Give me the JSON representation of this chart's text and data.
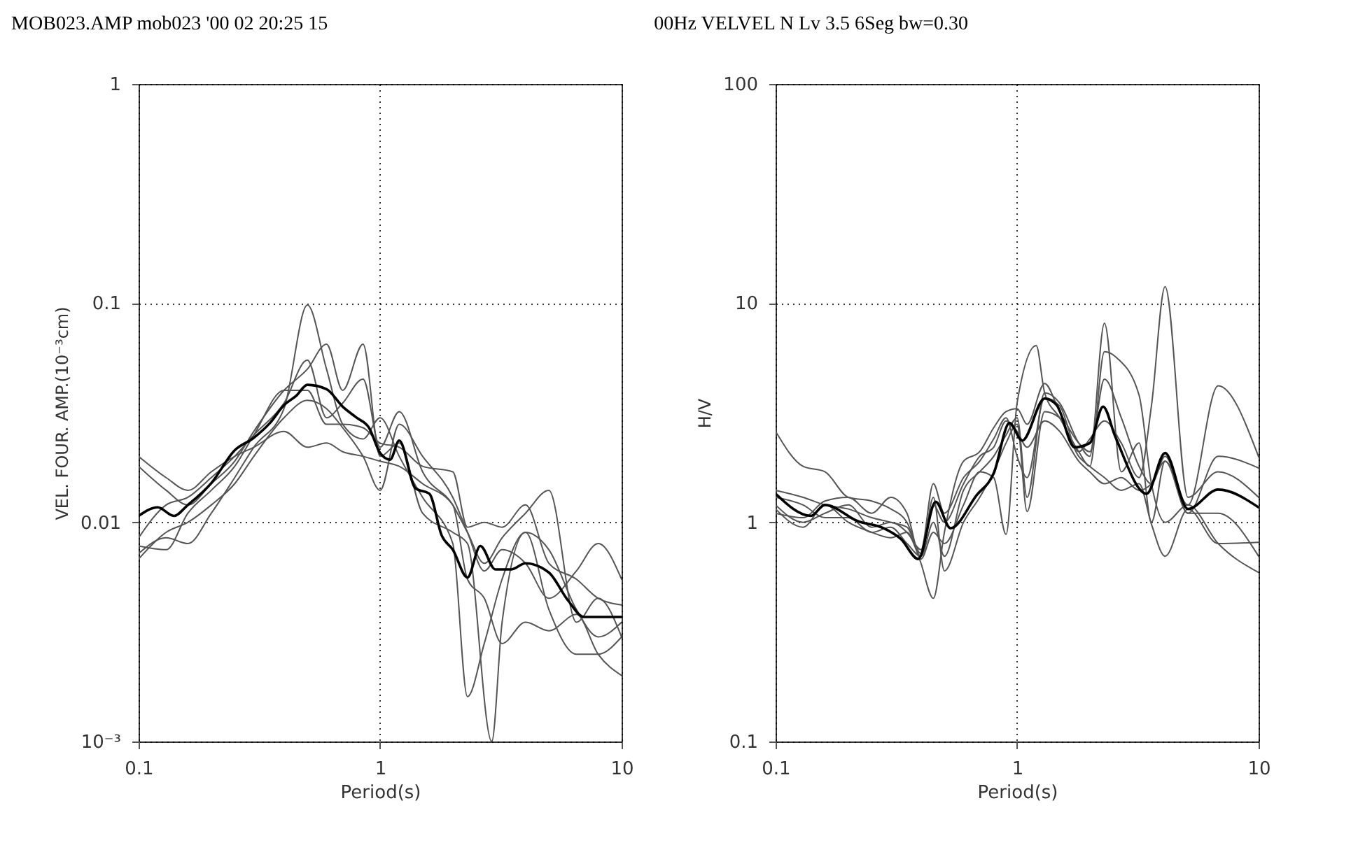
{
  "chart_data": [
    {
      "type": "line",
      "title": "MOB023.AMP mob023 '00 02 20:25 15",
      "xlabel": "Period(s)",
      "ylabel": "VEL. FOUR. AMP.(10⁻³cm)",
      "log": "xy",
      "grid": true,
      "xlim": [
        0.1,
        10
      ],
      "xticks": [
        0.1,
        1,
        10
      ],
      "ylim": [
        0.001,
        1
      ],
      "yticks": [
        {
          "value": 0.001,
          "label": "10⁻³"
        },
        0.01,
        0.1,
        1
      ],
      "series": [
        {
          "color": "#555555",
          "x": [
            0.1,
            0.13,
            0.16,
            0.2,
            0.25,
            0.3,
            0.4,
            0.5,
            0.6,
            0.7,
            0.85,
            1.0,
            1.2,
            1.5,
            2.0,
            2.3,
            2.7,
            3.2,
            4,
            5,
            6.5,
            8,
            10
          ],
          "values": [
            0.0072,
            0.0085,
            0.008,
            0.011,
            0.016,
            0.022,
            0.033,
            0.098,
            0.05,
            0.028,
            0.024,
            0.03,
            0.02,
            0.013,
            0.008,
            0.0016,
            0.0028,
            0.0055,
            0.009,
            0.004,
            0.0025,
            0.0025,
            0.003
          ]
        },
        {
          "color": "#555555",
          "x": [
            0.1,
            0.13,
            0.16,
            0.2,
            0.25,
            0.3,
            0.4,
            0.5,
            0.6,
            0.7,
            0.85,
            1.0,
            1.2,
            1.5,
            2.0,
            2.3,
            2.7,
            3.2,
            4,
            5,
            6.5,
            8,
            10
          ],
          "values": [
            0.02,
            0.016,
            0.014,
            0.017,
            0.02,
            0.022,
            0.026,
            0.022,
            0.023,
            0.021,
            0.02,
            0.019,
            0.018,
            0.015,
            0.012,
            0.0055,
            0.0045,
            0.0028,
            0.0035,
            0.0032,
            0.0038,
            0.0025,
            0.002
          ]
        },
        {
          "color": "#555555",
          "x": [
            0.1,
            0.13,
            0.16,
            0.2,
            0.25,
            0.3,
            0.4,
            0.5,
            0.6,
            0.7,
            0.85,
            1.0,
            1.2,
            1.5,
            2.0,
            2.3,
            2.9,
            3.2,
            4,
            5,
            6.5,
            8,
            10
          ],
          "values": [
            0.018,
            0.014,
            0.012,
            0.015,
            0.019,
            0.026,
            0.04,
            0.05,
            0.065,
            0.04,
            0.065,
            0.02,
            0.023,
            0.011,
            0.009,
            0.008,
            0.001,
            0.0035,
            0.009,
            0.0075,
            0.004,
            0.003,
            0.0035
          ]
        },
        {
          "color": "#555555",
          "x": [
            0.1,
            0.13,
            0.16,
            0.2,
            0.25,
            0.3,
            0.4,
            0.5,
            0.6,
            0.7,
            0.85,
            1.0,
            1.2,
            1.5,
            2.0,
            2.3,
            2.7,
            3.2,
            4,
            5,
            6.5,
            8,
            10
          ],
          "values": [
            0.0085,
            0.012,
            0.013,
            0.016,
            0.02,
            0.025,
            0.035,
            0.055,
            0.03,
            0.035,
            0.045,
            0.022,
            0.032,
            0.017,
            0.012,
            0.009,
            0.0065,
            0.0085,
            0.011,
            0.014,
            0.0035,
            0.0045,
            0.003
          ]
        },
        {
          "color": "#555555",
          "x": [
            0.1,
            0.13,
            0.16,
            0.2,
            0.25,
            0.3,
            0.4,
            0.5,
            0.6,
            0.7,
            0.85,
            1.0,
            1.2,
            1.5,
            2.0,
            2.3,
            2.7,
            3.2,
            4,
            5,
            6.5,
            8,
            10
          ],
          "values": [
            0.0078,
            0.0075,
            0.011,
            0.014,
            0.018,
            0.025,
            0.04,
            0.04,
            0.028,
            0.028,
            0.027,
            0.023,
            0.022,
            0.018,
            0.017,
            0.0095,
            0.01,
            0.0095,
            0.012,
            0.0065,
            0.0055,
            0.0045,
            0.0042
          ]
        },
        {
          "color": "#555555",
          "x": [
            0.1,
            0.13,
            0.16,
            0.2,
            0.25,
            0.3,
            0.4,
            0.5,
            0.6,
            0.7,
            0.85,
            1.0,
            1.2,
            1.5,
            2.0,
            2.3,
            2.7,
            3.2,
            4,
            5,
            6.5,
            8,
            10
          ],
          "values": [
            0.0068,
            0.009,
            0.01,
            0.012,
            0.015,
            0.02,
            0.03,
            0.036,
            0.033,
            0.027,
            0.02,
            0.014,
            0.028,
            0.02,
            0.013,
            0.009,
            0.006,
            0.0075,
            0.0065,
            0.0045,
            0.006,
            0.008,
            0.0055
          ]
        },
        {
          "color": "#000000",
          "x": [
            0.1,
            0.12,
            0.14,
            0.16,
            0.2,
            0.25,
            0.3,
            0.35,
            0.4,
            0.45,
            0.5,
            0.6,
            0.7,
            0.8,
            0.9,
            1.0,
            1.1,
            1.2,
            1.4,
            1.6,
            1.8,
            2.0,
            2.3,
            2.6,
            3.0,
            3.5,
            4.0,
            5,
            6,
            7,
            8,
            10
          ],
          "values": [
            0.0107,
            0.0117,
            0.0107,
            0.012,
            0.0151,
            0.0213,
            0.0243,
            0.0284,
            0.0342,
            0.0378,
            0.0424,
            0.0405,
            0.0337,
            0.03,
            0.027,
            0.0207,
            0.0193,
            0.0236,
            0.0143,
            0.0135,
            0.0087,
            0.0075,
            0.0056,
            0.0078,
            0.0061,
            0.0061,
            0.0065,
            0.0059,
            0.0044,
            0.0037,
            0.0037,
            0.0037
          ]
        }
      ]
    },
    {
      "type": "line",
      "title": "00Hz VELVEL N Lv 3.5 6Seg bw=0.30",
      "xlabel": "Period(s)",
      "ylabel": "H/V",
      "log": "xy",
      "grid": true,
      "xlim": [
        0.1,
        10
      ],
      "xticks": [
        0.1,
        1,
        10
      ],
      "ylim": [
        0.1,
        100
      ],
      "yticks": [
        0.1,
        1,
        10,
        100
      ],
      "series": [
        {
          "color": "#555555",
          "x": [
            0.1,
            0.13,
            0.16,
            0.2,
            0.25,
            0.3,
            0.35,
            0.4,
            0.45,
            0.5,
            0.6,
            0.7,
            0.8,
            0.9,
            1.0,
            1.1,
            1.3,
            1.5,
            1.8,
            2.0,
            2.3,
            2.7,
            3.2,
            3.6,
            4.1,
            5.1,
            6.8,
            10
          ],
          "values": [
            2.6,
            1.8,
            1.7,
            1.3,
            1.25,
            1.15,
            1.0,
            0.65,
            0.45,
            0.9,
            1.9,
            2.1,
            2.7,
            3.2,
            3.3,
            2.8,
            4.3,
            3.2,
            2.3,
            2.1,
            4.5,
            3.0,
            1.8,
            1.5,
            2.0,
            1.1,
            1.1,
            0.7
          ]
        },
        {
          "color": "#555555",
          "x": [
            0.1,
            0.13,
            0.16,
            0.2,
            0.25,
            0.3,
            0.35,
            0.4,
            0.45,
            0.5,
            0.6,
            0.7,
            0.8,
            0.9,
            1.0,
            1.1,
            1.3,
            1.5,
            1.8,
            2.0,
            2.3,
            2.7,
            3.2,
            3.6,
            4.1,
            5.1,
            6.8,
            10
          ],
          "values": [
            1.2,
            1.0,
            1.1,
            1.2,
            0.95,
            1.0,
            0.9,
            0.75,
            1.5,
            1.1,
            1.6,
            1.9,
            2.4,
            3.0,
            2.0,
            1.6,
            3.7,
            3.4,
            2.1,
            2.4,
            2.9,
            2.3,
            1.6,
            3.4,
            11.9,
            1.3,
            1.7,
            1.3
          ]
        },
        {
          "color": "#555555",
          "x": [
            0.1,
            0.13,
            0.16,
            0.2,
            0.25,
            0.3,
            0.35,
            0.4,
            0.45,
            0.5,
            0.6,
            0.7,
            0.8,
            0.9,
            1.0,
            1.1,
            1.3,
            1.5,
            1.8,
            2.0,
            2.3,
            2.7,
            3.2,
            3.6,
            4.1,
            5.1,
            6.8,
            10
          ],
          "values": [
            1.3,
            1.2,
            1.05,
            1.05,
            0.9,
            0.95,
            0.8,
            0.7,
            1.0,
            0.7,
            1.4,
            1.7,
            2.0,
            2.5,
            3.0,
            1.3,
            3.9,
            3.5,
            2.3,
            2.0,
            8.1,
            1.7,
            2.3,
            1.0,
            1.9,
            1.1,
            2.0,
            1.77
          ]
        },
        {
          "color": "#555555",
          "x": [
            0.1,
            0.13,
            0.16,
            0.2,
            0.25,
            0.3,
            0.35,
            0.4,
            0.45,
            0.5,
            0.6,
            0.7,
            0.8,
            0.9,
            1.0,
            1.2,
            1.3,
            1.5,
            1.8,
            2.0,
            2.3,
            2.6,
            3.2,
            3.6,
            4.1,
            5.1,
            6.8,
            10
          ],
          "values": [
            1.1,
            1.05,
            1.25,
            1.3,
            1.1,
            1.3,
            1.1,
            0.68,
            0.9,
            0.8,
            1.2,
            1.7,
            1.6,
            0.88,
            3.5,
            6.4,
            3.9,
            3.0,
            2.1,
            1.8,
            6.0,
            5.6,
            3.8,
            1.5,
            1.0,
            1.2,
            0.8,
            0.59
          ]
        },
        {
          "color": "#555555",
          "x": [
            0.1,
            0.13,
            0.16,
            0.2,
            0.25,
            0.3,
            0.35,
            0.4,
            0.45,
            0.5,
            0.6,
            0.7,
            0.8,
            0.9,
            1.0,
            1.1,
            1.3,
            1.5,
            1.8,
            2.0,
            2.3,
            2.7,
            3.2,
            3.6,
            4.1,
            5.1,
            6.8,
            10
          ],
          "values": [
            1.15,
            0.95,
            1.2,
            1.0,
            0.9,
            0.85,
            0.9,
            0.7,
            1.3,
            0.6,
            1.0,
            1.3,
            1.7,
            2.3,
            2.8,
            1.12,
            3.2,
            3.0,
            2.0,
            1.8,
            1.6,
            1.4,
            1.5,
            0.98,
            0.7,
            1.15,
            0.8,
            0.81
          ]
        },
        {
          "color": "#555555",
          "x": [
            0.1,
            0.13,
            0.16,
            0.2,
            0.25,
            0.3,
            0.35,
            0.4,
            0.45,
            0.5,
            0.6,
            0.7,
            0.8,
            0.9,
            1.0,
            1.1,
            1.3,
            1.5,
            1.8,
            2.0,
            2.3,
            2.7,
            3.2,
            3.6,
            4.1,
            5.1,
            6.8,
            10
          ],
          "values": [
            1.4,
            1.3,
            1.2,
            1.15,
            1.05,
            1.0,
            0.95,
            0.72,
            1.2,
            1.0,
            1.5,
            2.0,
            2.2,
            2.9,
            2.6,
            2.2,
            2.9,
            2.6,
            1.9,
            1.7,
            1.5,
            1.6,
            1.4,
            1.5,
            1.9,
            1.2,
            4.2,
            1.99
          ]
        },
        {
          "color": "#000000",
          "x": [
            0.1,
            0.14,
            0.16,
            0.22,
            0.28,
            0.33,
            0.39,
            0.46,
            0.53,
            0.68,
            0.8,
            0.93,
            1.05,
            1.3,
            1.46,
            1.73,
            2.0,
            2.27,
            2.55,
            3.44,
            4.1,
            5.1,
            6.8,
            10
          ],
          "values": [
            1.35,
            1.07,
            1.2,
            1.01,
            0.94,
            0.84,
            0.68,
            1.24,
            0.94,
            1.33,
            1.67,
            2.84,
            2.36,
            3.67,
            3.42,
            2.2,
            2.3,
            3.37,
            2.46,
            1.35,
            2.07,
            1.15,
            1.41,
            1.17
          ]
        }
      ]
    }
  ]
}
